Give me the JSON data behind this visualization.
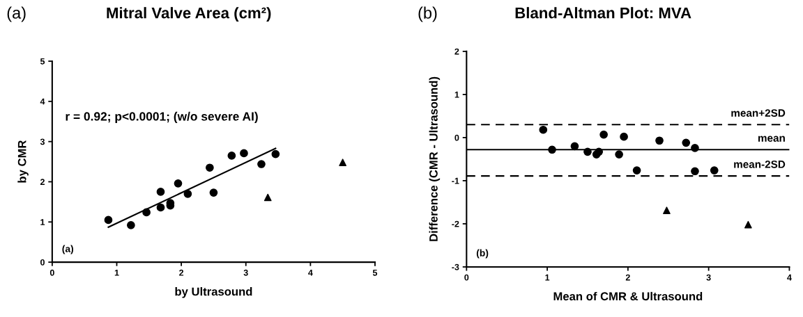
{
  "chart_data": [
    {
      "type": "scatter",
      "title": "Mitral Valve Area (cm²)",
      "xlabel": "by Ultrasound",
      "ylabel": "by CMR",
      "annotations": [
        "(a)",
        "r = 0.92; p<0.0001; (w/o severe AI)",
        "(a)"
      ],
      "xlim": [
        0,
        5
      ],
      "xticks": [
        0,
        1,
        2,
        3,
        4,
        5
      ],
      "ylim": [
        0,
        5
      ],
      "yticks": [
        0,
        1,
        2,
        3,
        4,
        5
      ],
      "grid": false,
      "legend": false,
      "series": [
        {
          "marker": "circle",
          "color": "#000000",
          "x": [
            0.87,
            1.22,
            1.46,
            1.68,
            1.68,
            1.83,
            1.83,
            1.95,
            2.1,
            2.44,
            2.5,
            2.78,
            2.97,
            3.24,
            3.46
          ],
          "values": [
            1.05,
            0.92,
            1.24,
            1.75,
            1.36,
            1.47,
            1.41,
            1.96,
            1.7,
            2.35,
            1.73,
            2.65,
            2.71,
            2.44,
            2.69
          ]
        },
        {
          "marker": "triangle",
          "color": "#000000",
          "x": [
            3.34,
            4.5
          ],
          "values": [
            1.61,
            2.48
          ]
        },
        {
          "type": "line",
          "marker": "none",
          "color": "#000000",
          "x": [
            0.87,
            3.46
          ],
          "values": [
            0.87,
            2.83
          ]
        }
      ]
    },
    {
      "type": "scatter",
      "title": "Bland-Altman Plot: MVA",
      "xlabel": "Mean of CMR & Ultrasound",
      "ylabel": "Difference (CMR - Ultrasound)",
      "annotations": [
        "(b)",
        "(b)"
      ],
      "xlim": [
        0,
        4
      ],
      "xticks": [
        0,
        1,
        2,
        3,
        4
      ],
      "ylim": [
        -3,
        2
      ],
      "yticks": [
        -3,
        -2,
        -1,
        0,
        1,
        2
      ],
      "grid": false,
      "legend": false,
      "ref_lines": [
        {
          "axis": "y",
          "value": 0.3,
          "label": "mean+2SD",
          "color": "#000000",
          "line_style": "dashed"
        },
        {
          "axis": "y",
          "value": -0.28,
          "label": "mean",
          "color": "#000000",
          "line_style": "solid"
        },
        {
          "axis": "y",
          "value": -0.89,
          "label": "mean-2SD",
          "color": "#000000",
          "line_style": "dashed"
        }
      ],
      "series": [
        {
          "marker": "circle",
          "color": "#000000",
          "x": [
            0.95,
            1.06,
            1.34,
            1.5,
            1.61,
            1.64,
            1.7,
            1.89,
            1.95,
            2.11,
            2.39,
            2.72,
            2.83,
            2.83,
            3.07
          ],
          "values": [
            0.18,
            -0.28,
            -0.2,
            -0.33,
            -0.39,
            -0.33,
            0.07,
            -0.39,
            0.02,
            -0.76,
            -0.07,
            -0.12,
            -0.24,
            -0.78,
            -0.76
          ]
        },
        {
          "marker": "triangle",
          "color": "#000000",
          "x": [
            2.48,
            3.49
          ],
          "values": [
            -1.69,
            -2.02
          ]
        }
      ]
    }
  ]
}
